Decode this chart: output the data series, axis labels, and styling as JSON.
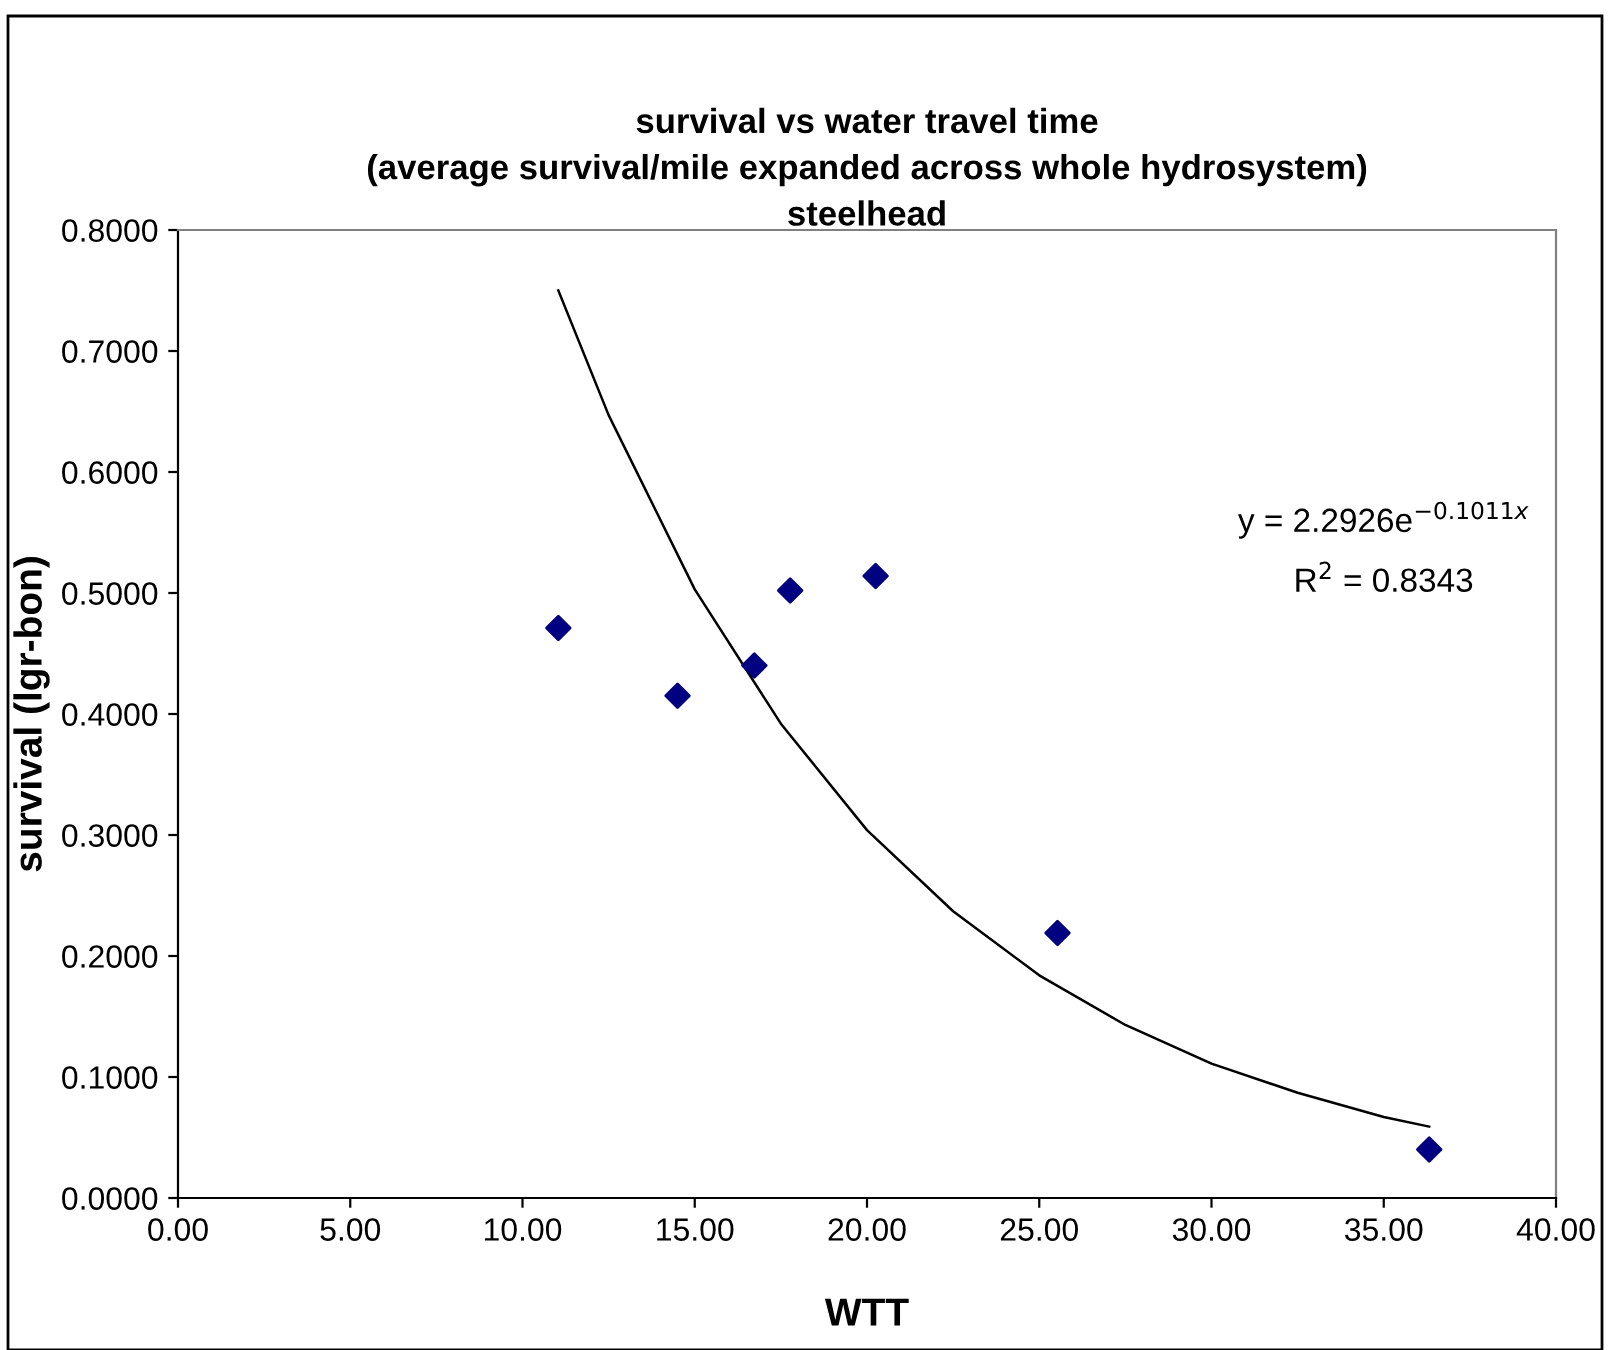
{
  "chart_data": {
    "type": "scatter",
    "title": "survival vs water travel time\n(average survival/mile expanded across whole hydrosystem)\nsteelhead",
    "xlabel": "WTT",
    "ylabel": "survival (lgr-bon)",
    "series": [
      {
        "color": "#000080",
        "x": [
          11.04,
          14.5,
          16.73,
          17.77,
          20.25,
          25.53,
          36.32
        ],
        "values": [
          0.471,
          0.415,
          0.44,
          0.502,
          0.514,
          0.219,
          0.04
        ]
      },
      {
        "type": "line",
        "color": "#000000",
        "marker": "none",
        "line_style": "solid",
        "x": [
          11.04,
          12.5,
          15,
          17.5,
          20,
          22.5,
          25,
          27.5,
          30,
          32.5,
          35,
          36.32
        ],
        "values": [
          0.75,
          0.647,
          0.503,
          0.392,
          0.304,
          0.237,
          0.184,
          0.143,
          0.111,
          0.087,
          0.067,
          0.059
        ]
      }
    ],
    "annotations": [
      "y = 2.2926e$^{−0.1011x}$",
      "R$^{2}$ = 0.8343"
    ],
    "xlim": [
      0,
      40
    ],
    "xticks": [
      {
        "value": 0,
        "label": "0.00"
      },
      {
        "value": 5,
        "label": "5.00"
      },
      {
        "value": 10,
        "label": "10.00"
      },
      {
        "value": 15,
        "label": "15.00"
      },
      {
        "value": 20,
        "label": "20.00"
      },
      {
        "value": 25,
        "label": "25.00"
      },
      {
        "value": 30,
        "label": "30.00"
      },
      {
        "value": 35,
        "label": "35.00"
      },
      {
        "value": 40,
        "label": "40.00"
      }
    ],
    "ylim": [
      0,
      0.8
    ],
    "yticks": [
      {
        "value": 0,
        "label": "0.0000"
      },
      {
        "value": 0.1,
        "label": "0.1000"
      },
      {
        "value": 0.2,
        "label": "0.2000"
      },
      {
        "value": 0.3,
        "label": "0.3000"
      },
      {
        "value": 0.4,
        "label": "0.4000"
      },
      {
        "value": 0.5,
        "label": "0.5000"
      },
      {
        "value": 0.6,
        "label": "0.6000"
      },
      {
        "value": 0.7,
        "label": "0.7000"
      },
      {
        "value": 0.8,
        "label": "0.8000"
      }
    ],
    "marker": "diamond"
  }
}
